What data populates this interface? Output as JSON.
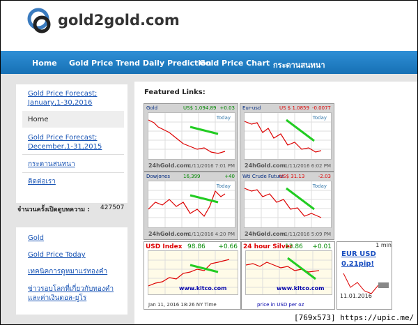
{
  "header": {
    "logo": "gold2gold.com"
  },
  "nav": [
    "Home",
    "Gold Price Trend Daily Prediction",
    "Gold Price Chart",
    "กระดานสนทนา"
  ],
  "sidebar": {
    "top_links": [
      "Gold Price Forecast; January,1-30,2016",
      "Home",
      "Gold Price Forecast; December,1-31,2015",
      "กระดานสนทนา",
      "ติดต่อเรา"
    ],
    "counter_label": "จำนวนครั้งเปิดดูบทความ :",
    "counter_value": "427507",
    "bottom_links": [
      "Gold",
      "Gold Price Today",
      "เทคนิคการดูหมาแร่ทองคำ",
      "ข่าวรอบโลกที่เกี่ยวกับทองคำและค่าเงินดอล-ยูโร"
    ]
  },
  "featured": {
    "title": "Featured Links:",
    "charts": [
      {
        "title": "Gold",
        "price": "US$ 1,094.89",
        "change": "+0.03",
        "tag": "Today",
        "site": "24hGold.com",
        "time": "1/11/2016 7:01 PM"
      },
      {
        "title": "Eur-usd",
        "price": "US $ 1.0859",
        "change": "-0.0077",
        "tag": "Today",
        "site": "24hGold.com",
        "time": "1/11/2016 6:02 PM"
      },
      {
        "title": "Dowjones",
        "price": "16,399",
        "change": "+40",
        "tag": "Today",
        "site": "24hGold.com",
        "time": "1/11/2016 4:20 PM"
      },
      {
        "title": "Wti Crude Future",
        "price": "US$ 31.13",
        "change": "-2.03",
        "tag": "Today",
        "site": "24hGold.com",
        "time": "1/11/2016 5:09 PM"
      },
      {
        "title": "USD Index",
        "price": "98.86",
        "change": "+0.66",
        "site": "www.kitco.com",
        "time": "Jan 11, 2016 18:26 NY Time"
      },
      {
        "title": "24 hour Silver",
        "price": "13.86",
        "change": "+0.01",
        "site": "www.kitco.com",
        "time": "price in USD per oz"
      },
      {
        "title": "EUR USD",
        "price": "0.21pip!",
        "tag": "1 min",
        "time": "11.01.2016"
      }
    ]
  },
  "watermark": {
    "size": "[769x573]",
    "url": "https://upic.me/"
  }
}
